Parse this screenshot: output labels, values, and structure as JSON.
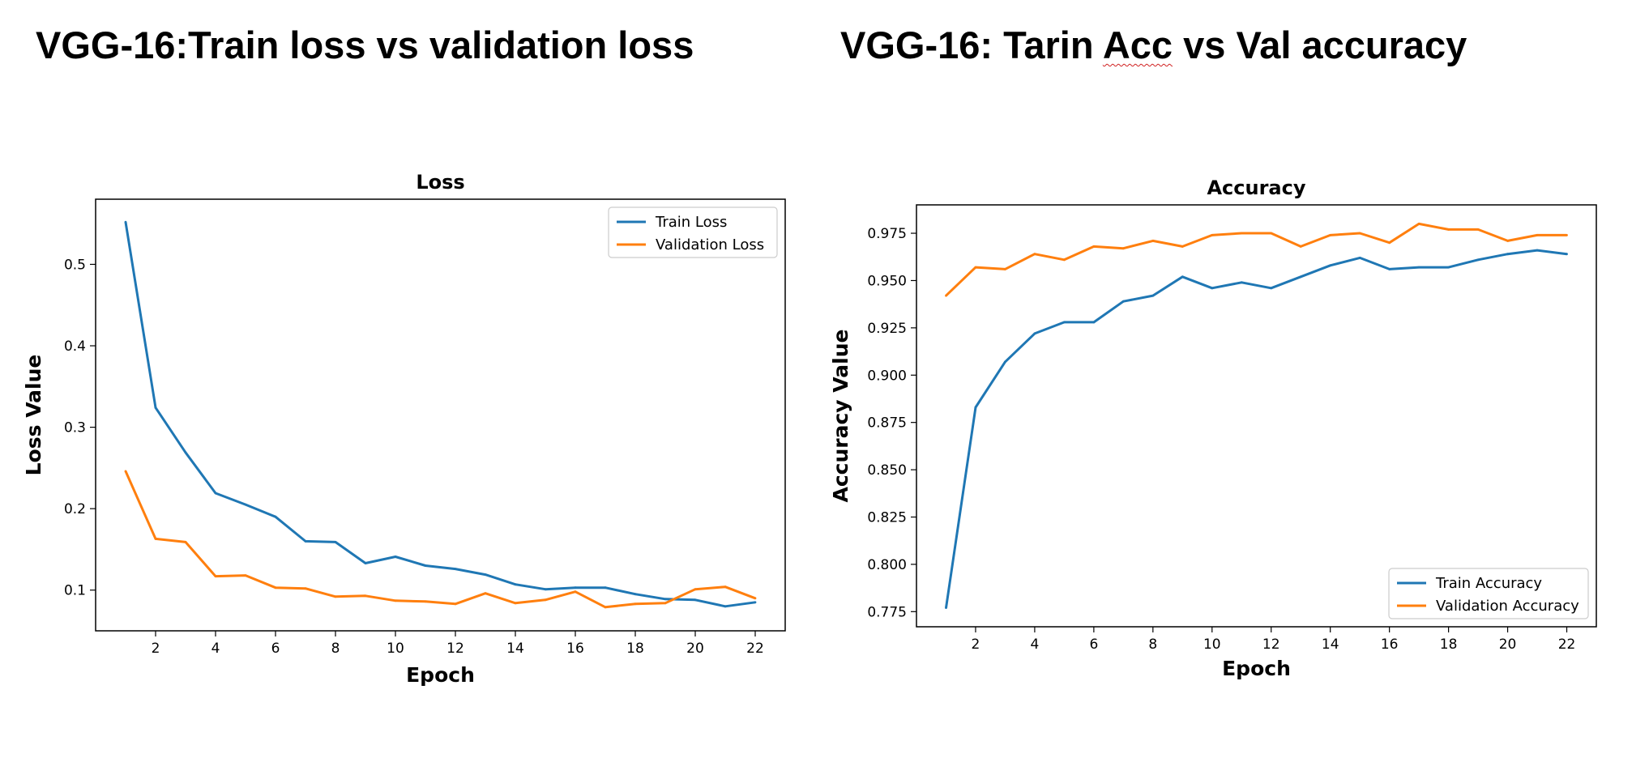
{
  "page": {
    "title_left": "VGG-16:Train loss vs validation loss",
    "title_right_prefix": "VGG-16: Tarin ",
    "title_right_squiggle": "Acc",
    "title_right_suffix": " vs Val accuracy"
  },
  "colors": {
    "series1": "#1f77b4",
    "series2": "#ff7f0e",
    "frame": "#000000",
    "squiggle": "#d02020"
  },
  "chart_data": [
    {
      "type": "line",
      "title": "Loss",
      "xlabel": "Epoch",
      "ylabel": "Loss Value",
      "xlim": [
        0,
        23
      ],
      "ylim": [
        0.05,
        0.58
      ],
      "xticks": [
        2,
        4,
        6,
        8,
        10,
        12,
        14,
        16,
        18,
        20,
        22
      ],
      "yticks": [
        0.1,
        0.2,
        0.3,
        0.4,
        0.5
      ],
      "ytick_labels": [
        "0.1",
        "0.2",
        "0.3",
        "0.4",
        "0.5"
      ],
      "legend_position": "top-right",
      "x": [
        1,
        2,
        3,
        4,
        5,
        6,
        7,
        8,
        9,
        10,
        11,
        12,
        13,
        14,
        15,
        16,
        17,
        18,
        19,
        20,
        21,
        22
      ],
      "series": [
        {
          "name": "Train Loss",
          "color": "#1f77b4",
          "values": [
            0.552,
            0.324,
            0.269,
            0.219,
            0.205,
            0.19,
            0.16,
            0.159,
            0.133,
            0.141,
            0.13,
            0.126,
            0.119,
            0.107,
            0.101,
            0.103,
            0.103,
            0.095,
            0.089,
            0.088,
            0.08,
            0.085
          ]
        },
        {
          "name": "Validation Loss",
          "color": "#ff7f0e",
          "values": [
            0.246,
            0.163,
            0.159,
            0.117,
            0.118,
            0.103,
            0.102,
            0.092,
            0.093,
            0.087,
            0.086,
            0.083,
            0.096,
            0.084,
            0.088,
            0.098,
            0.079,
            0.083,
            0.084,
            0.101,
            0.104,
            0.09
          ]
        }
      ]
    },
    {
      "type": "line",
      "title": "Accuracy",
      "xlabel": "Epoch",
      "ylabel": "Accuracy Value",
      "xlim": [
        0,
        23
      ],
      "ylim": [
        0.767,
        0.99
      ],
      "xticks": [
        2,
        4,
        6,
        8,
        10,
        12,
        14,
        16,
        18,
        20,
        22
      ],
      "yticks": [
        0.775,
        0.8,
        0.825,
        0.85,
        0.875,
        0.9,
        0.925,
        0.95,
        0.975
      ],
      "ytick_labels": [
        "0.775",
        "0.800",
        "0.825",
        "0.850",
        "0.875",
        "0.900",
        "0.925",
        "0.950",
        "0.975"
      ],
      "legend_position": "bottom-right",
      "x": [
        1,
        2,
        3,
        4,
        5,
        6,
        7,
        8,
        9,
        10,
        11,
        12,
        13,
        14,
        15,
        16,
        17,
        18,
        19,
        20,
        21,
        22
      ],
      "series": [
        {
          "name": "Train Accuracy",
          "color": "#1f77b4",
          "values": [
            0.777,
            0.883,
            0.907,
            0.922,
            0.928,
            0.928,
            0.939,
            0.942,
            0.952,
            0.946,
            0.949,
            0.946,
            0.952,
            0.958,
            0.962,
            0.956,
            0.957,
            0.957,
            0.961,
            0.964,
            0.966,
            0.964
          ]
        },
        {
          "name": "Validation Accuracy",
          "color": "#ff7f0e",
          "values": [
            0.942,
            0.957,
            0.956,
            0.964,
            0.961,
            0.968,
            0.967,
            0.971,
            0.968,
            0.974,
            0.975,
            0.975,
            0.968,
            0.974,
            0.975,
            0.97,
            0.98,
            0.977,
            0.977,
            0.971,
            0.974,
            0.974
          ]
        }
      ]
    }
  ]
}
